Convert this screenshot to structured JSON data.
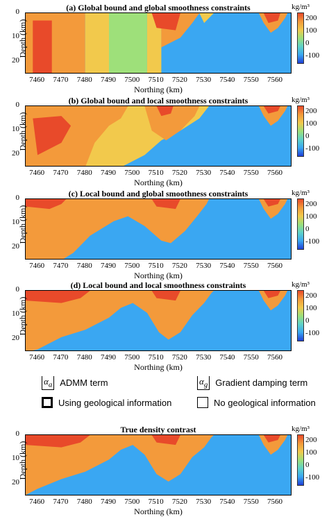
{
  "colorbar": {
    "unit": "kg/m³",
    "ticks": [
      "200",
      "100",
      "0",
      "-100"
    ],
    "range": [
      -150,
      250
    ],
    "colormap": [
      "#1f3fd6",
      "#3aa7f2",
      "#5fd2c8",
      "#9ee07a",
      "#f2c94c",
      "#f39a3b",
      "#e84a2a"
    ]
  },
  "axes": {
    "xlabel": "Northing (km)",
    "ylabel": "Depth (km)",
    "xticks": [
      "7460",
      "7470",
      "7480",
      "7490",
      "7500",
      "7510",
      "7520",
      "7530",
      "7540",
      "7550",
      "7560"
    ],
    "yticks": [
      "0",
      "10",
      "20"
    ],
    "xlim": [
      7455,
      7567
    ],
    "ylim": [
      0,
      25
    ]
  },
  "legend": {
    "admm_symbol": "α",
    "admm_sub": "a",
    "admm_label": "ADMM term",
    "grad_symbol": "α",
    "grad_sub": "g",
    "grad_label": "Gradient damping term",
    "geo_label": "Using geological information",
    "nogeo_label": "No geological information"
  },
  "chart_data": [
    {
      "type": "heatmap",
      "title": "(a) Global bound and global smoothness constraints",
      "xlabel": "Northing (km)",
      "ylabel": "Depth (km)",
      "x": [
        7455,
        7567
      ],
      "ylim": [
        0,
        25
      ],
      "zlim": [
        -150,
        250
      ],
      "description_values": {
        "left_block": 170,
        "middle": 40,
        "right_background": -20,
        "top_anomalies": 230
      }
    },
    {
      "type": "heatmap",
      "title": "(b) Global bound and local smoothness constraints",
      "xlabel": "Northing (km)",
      "ylabel": "Depth (km)",
      "x": [
        7455,
        7567
      ],
      "ylim": [
        0,
        25
      ],
      "zlim": [
        -150,
        250
      ]
    },
    {
      "type": "heatmap",
      "title": "(c) Local bound and global smoothness constraints",
      "xlabel": "Northing (km)",
      "ylabel": "Depth (km)",
      "x": [
        7455,
        7567
      ],
      "ylim": [
        0,
        25
      ],
      "zlim": [
        -150,
        250
      ]
    },
    {
      "type": "heatmap",
      "title": "(d) Local bound and local smoothness constraints",
      "xlabel": "Northing (km)",
      "ylabel": "Depth (km)",
      "x": [
        7455,
        7567
      ],
      "ylim": [
        0,
        25
      ],
      "zlim": [
        -150,
        250
      ]
    },
    {
      "type": "heatmap",
      "title": "True density contrast",
      "xlabel": "Northing (km)",
      "ylabel": "Depth (km)",
      "x": [
        7455,
        7567
      ],
      "ylim": [
        0,
        25
      ],
      "zlim": [
        -150,
        250
      ]
    }
  ]
}
